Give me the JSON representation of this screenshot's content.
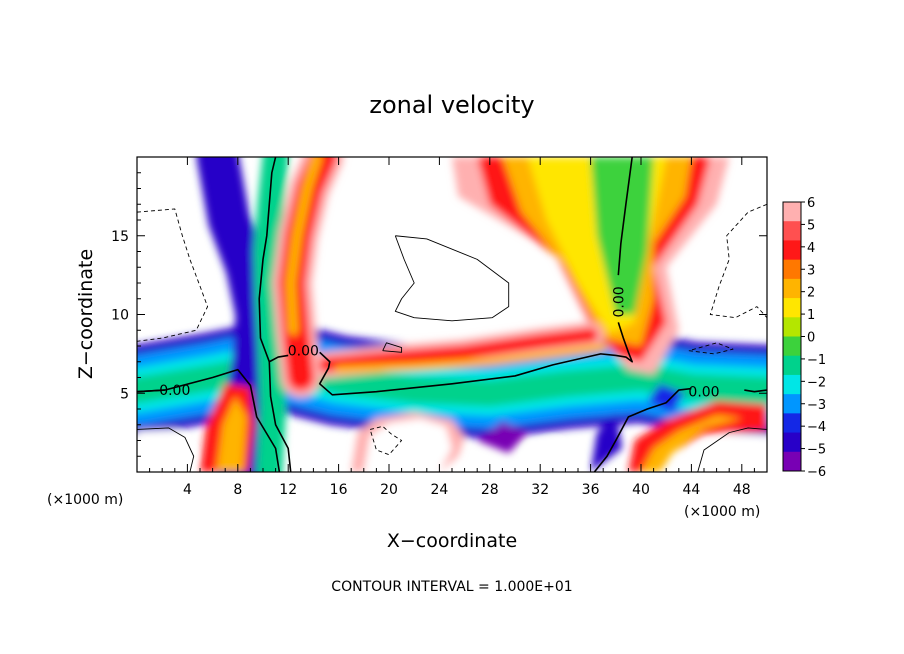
{
  "chart_data": {
    "type": "heatmap",
    "title": "zonal velocity",
    "xlabel": "X−coordinate",
    "ylabel": "Z−coordinate",
    "x_unit_left": "(×1000 m)",
    "x_unit_right": "(×1000 m)",
    "xlim": [
      0,
      50
    ],
    "ylim": [
      0,
      20
    ],
    "x_ticks": [
      4,
      8,
      12,
      16,
      20,
      24,
      28,
      32,
      36,
      40,
      44,
      48
    ],
    "y_ticks": [
      5,
      10,
      15
    ],
    "colorbar": {
      "levels": [
        6,
        5,
        4,
        3,
        2,
        1,
        0,
        -1,
        -2,
        -3,
        -4,
        -5,
        -6
      ],
      "labels": [
        "6",
        "5",
        "4",
        "3",
        "2",
        "1",
        "0",
        "−1",
        "−2",
        "−3",
        "−4",
        "−5",
        "−6"
      ],
      "colors": [
        "#ffb0b0",
        "#ff5050",
        "#ff1818",
        "#ff7800",
        "#ffb400",
        "#ffe600",
        "#b4e600",
        "#3cd23c",
        "#00d28c",
        "#00e6e6",
        "#0096ff",
        "#1428e6",
        "#2800c8",
        "#7800b4"
      ]
    },
    "contour_labels": [
      {
        "text": "0.00",
        "x": 3.0,
        "y": 5.2
      },
      {
        "text": "0.00",
        "x": 13.2,
        "y": 7.7
      },
      {
        "text": "0.00",
        "x": 38.2,
        "y": 10.8
      },
      {
        "text": "0.00",
        "x": 45.0,
        "y": 5.1
      }
    ],
    "footer": "CONTOUR INTERVAL = 1.000E+01"
  }
}
